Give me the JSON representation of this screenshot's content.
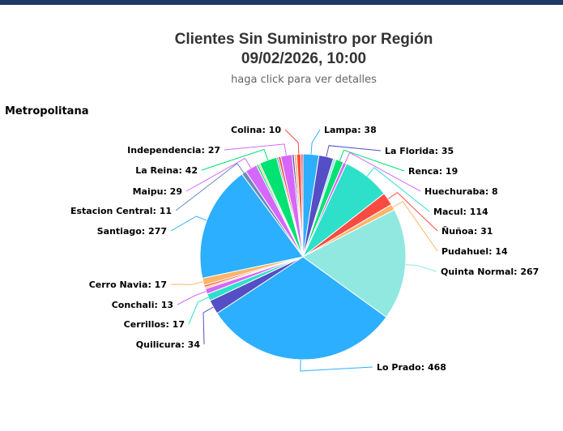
{
  "header": {
    "title_line1": "Clientes Sin Suministro por Región",
    "title_line2": "09/02/2026, 10:00",
    "subtitle": "haga click para ver detalles"
  },
  "region_label": "Metropolitana",
  "chart_data": {
    "type": "pie",
    "title": "Clientes Sin Suministro por Región",
    "subtitle": "haga click para ver detalles",
    "region": "Metropolitana",
    "slices": [
      {
        "label": "Lampa",
        "value": 38,
        "color": "#2caffe"
      },
      {
        "label": "La Florida",
        "value": 35,
        "color": "#544fc5"
      },
      {
        "label": "Renca",
        "value": 19,
        "color": "#00e272"
      },
      {
        "label": "Huechuraba",
        "value": 8,
        "color": "#d568fb"
      },
      {
        "label": "Macul",
        "value": 114,
        "color": "#2ee0ca"
      },
      {
        "label": "Ñuñoa",
        "value": 31,
        "color": "#fa4b42"
      },
      {
        "label": "Pudahuel",
        "value": 14,
        "color": "#feb56a"
      },
      {
        "label": "Quinta Normal",
        "value": 267,
        "color": "#91e8e1"
      },
      {
        "label": "Lo Prado",
        "value": 468,
        "color": "#2caffe"
      },
      {
        "label": "Quilicura",
        "value": 34,
        "color": "#544fc5"
      },
      {
        "label": "Cerrillos",
        "value": 17,
        "color": "#2ee0ca"
      },
      {
        "label": "Conchali",
        "value": 13,
        "color": "#d568fb"
      },
      {
        "label": "Cerro Navia",
        "value": 17,
        "color": "#feb56a"
      },
      {
        "label": "Santiago",
        "value": 277,
        "color": "#2caffe"
      },
      {
        "label": "Estacion Central",
        "value": 11,
        "color": "#6b8abc"
      },
      {
        "label": "Maipu",
        "value": 29,
        "color": "#d568fb"
      },
      {
        "label": "La Reina",
        "value": 42,
        "color": "#00e272"
      },
      {
        "label": "Independencia",
        "value": 27,
        "color": "#d568fb"
      },
      {
        "label": "Colina",
        "value": 10,
        "color": "#fa4b42"
      }
    ],
    "filler_slices": [
      {
        "value": 6,
        "color": "#91e8e1"
      },
      {
        "value": 4,
        "color": "#feb56a"
      },
      {
        "value": 5,
        "color": "#fa4b42"
      },
      {
        "value": 5,
        "color": "#00e272"
      },
      {
        "value": 4,
        "color": "#feb56a"
      },
      {
        "value": 4,
        "color": "#6b8abc"
      },
      {
        "value": 6,
        "color": "#fa4b42"
      },
      {
        "value": 5,
        "color": "#544fc5"
      },
      {
        "value": 6,
        "color": "#feb56a"
      },
      {
        "value": 5,
        "color": "#fa4b42"
      }
    ]
  }
}
